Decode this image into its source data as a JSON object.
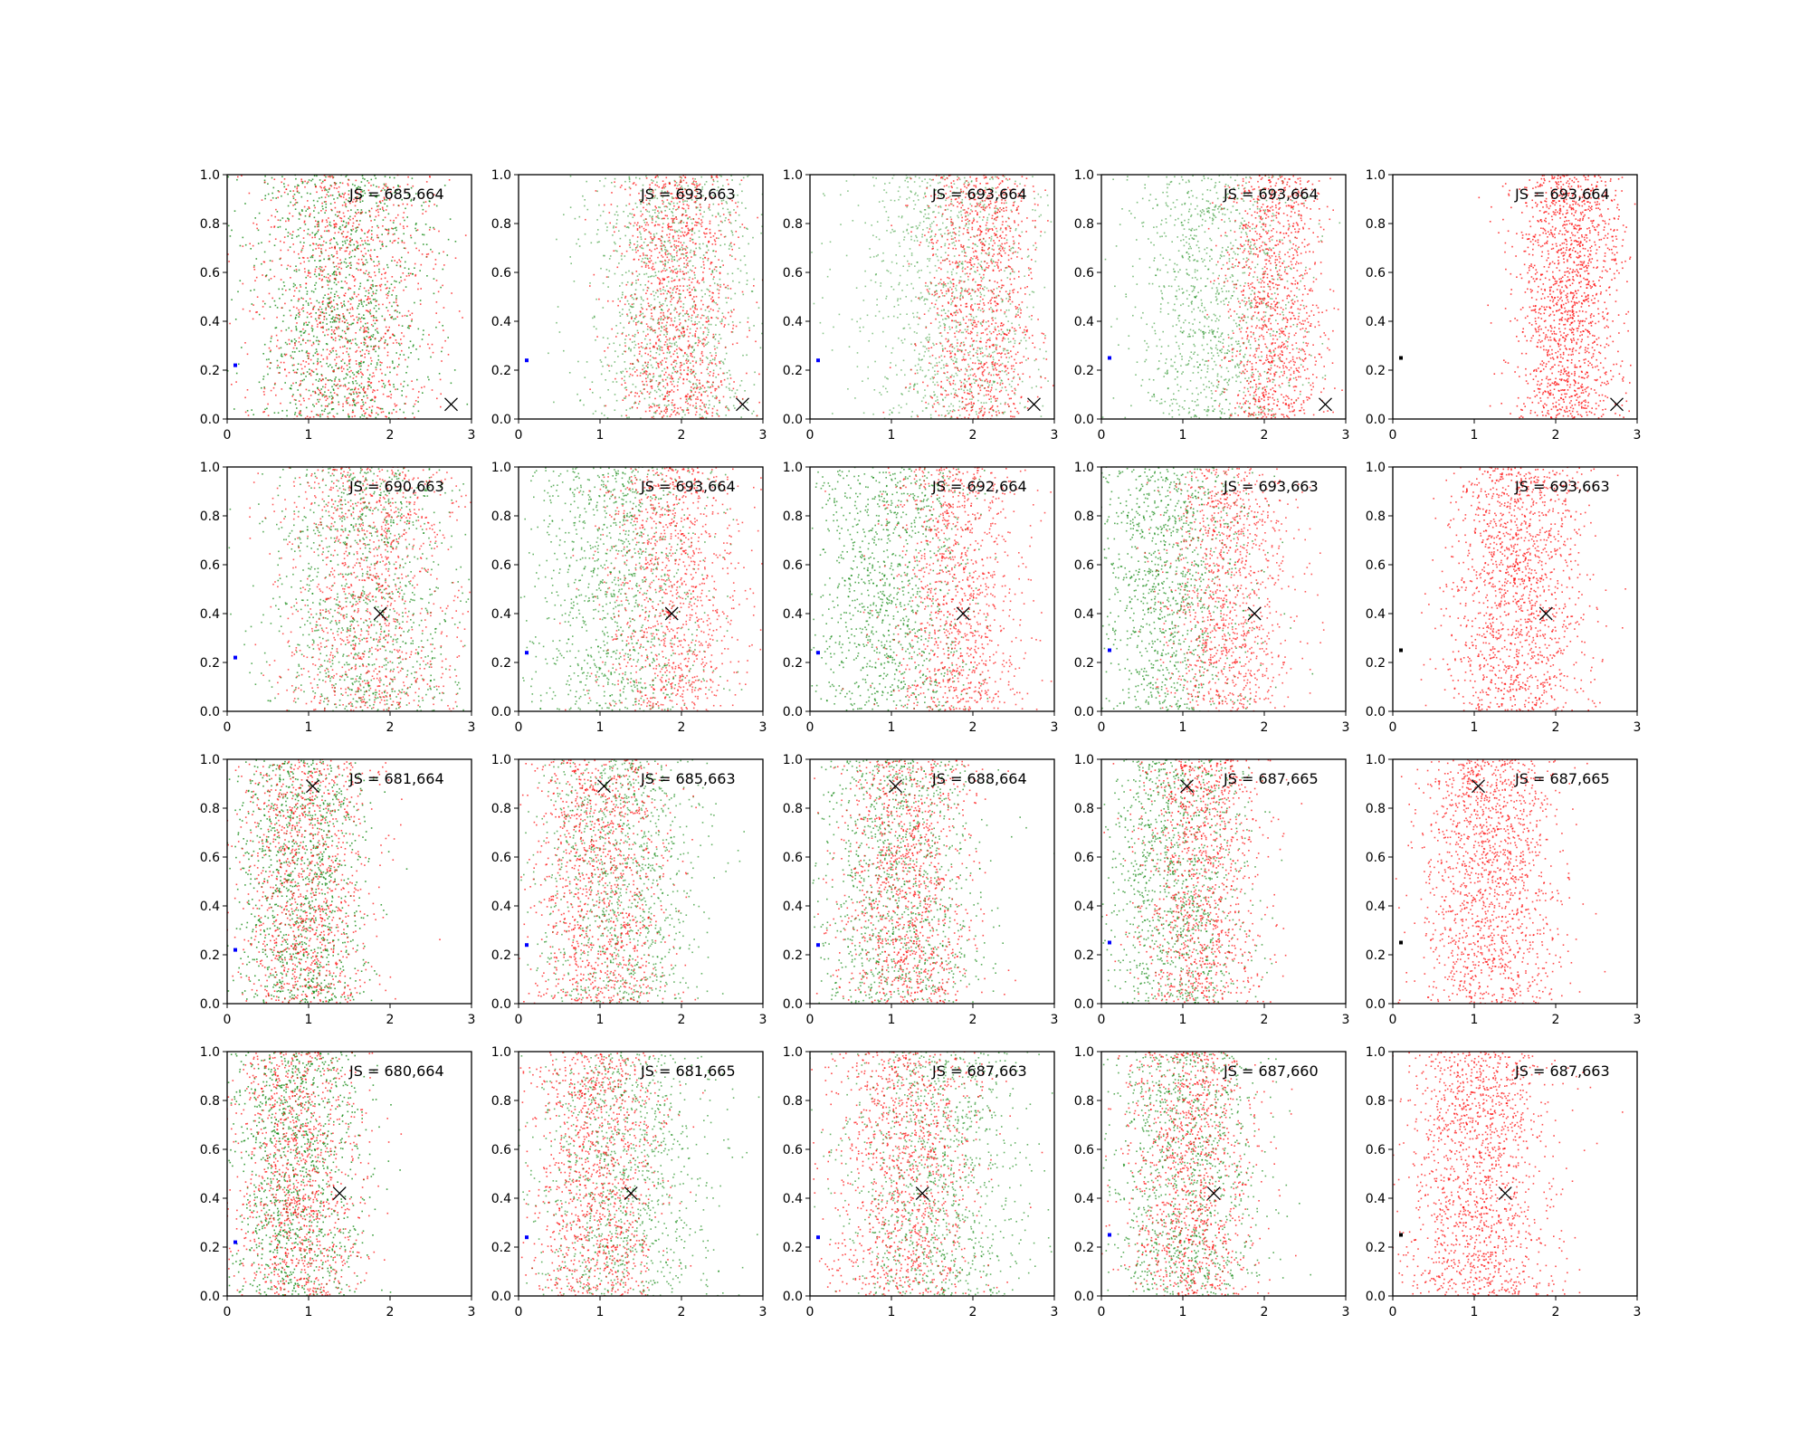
{
  "figure": {
    "rows": 4,
    "cols": 5
  },
  "colors": {
    "red": "#ff0000",
    "green": "#008000",
    "blue": "#0000ff",
    "black": "#000000",
    "axis": "#000000"
  },
  "axes": {
    "xlim": [
      0,
      3
    ],
    "ylim": [
      0,
      1
    ],
    "xticks": [
      0,
      1,
      2,
      3
    ],
    "xtick_labels": [
      "0",
      "1",
      "2",
      "3"
    ],
    "yticks": [
      0.0,
      0.2,
      0.4,
      0.6,
      0.8,
      1.0
    ],
    "ytick_labels": [
      "0.0",
      "0.2",
      "0.4",
      "0.6",
      "0.8",
      "1.0"
    ],
    "grid": false
  },
  "chart_data": {
    "type": "scatter",
    "row_markers": [
      {
        "x": 2.75,
        "y": 0.06
      },
      {
        "x": 1.88,
        "y": 0.4
      },
      {
        "x": 1.05,
        "y": 0.89
      },
      {
        "x": 1.38,
        "y": 0.42
      }
    ],
    "panels": [
      {
        "annotation": "JS = 685,664",
        "small_marker": {
          "x": 0.1,
          "y": 0.22,
          "color": "blue"
        },
        "clouds": [
          {
            "color": "green",
            "center": 1.4,
            "spread": 0.55,
            "count": 1100,
            "opacity": 0.75
          },
          {
            "color": "red",
            "center": 1.45,
            "spread": 0.55,
            "count": 1100,
            "opacity": 0.7
          }
        ]
      },
      {
        "annotation": "JS = 693,663",
        "small_marker": {
          "x": 0.1,
          "y": 0.24,
          "color": "blue"
        },
        "clouds": [
          {
            "color": "green",
            "center": 1.9,
            "spread": 0.55,
            "count": 1100,
            "opacity": 0.5
          },
          {
            "color": "red",
            "center": 1.95,
            "spread": 0.38,
            "count": 1100,
            "opacity": 0.7
          }
        ]
      },
      {
        "annotation": "JS = 693,664",
        "small_marker": {
          "x": 0.1,
          "y": 0.24,
          "color": "blue"
        },
        "clouds": [
          {
            "color": "green",
            "center": 1.75,
            "spread": 0.6,
            "count": 1100,
            "opacity": 0.45
          },
          {
            "color": "red",
            "center": 2.1,
            "spread": 0.35,
            "count": 1100,
            "opacity": 0.7
          }
        ]
      },
      {
        "annotation": "JS = 693,664",
        "small_marker": {
          "x": 0.1,
          "y": 0.25,
          "color": "blue"
        },
        "clouds": [
          {
            "color": "green",
            "center": 1.4,
            "spread": 0.55,
            "count": 1100,
            "opacity": 0.5
          },
          {
            "color": "red",
            "center": 2.15,
            "spread": 0.3,
            "count": 1100,
            "opacity": 0.7
          }
        ]
      },
      {
        "annotation": "JS = 693,664",
        "small_marker": {
          "x": 0.1,
          "y": 0.25,
          "color": "black"
        },
        "clouds": [
          {
            "color": "red",
            "center": 2.15,
            "spread": 0.32,
            "count": 1500,
            "opacity": 0.75
          }
        ]
      },
      {
        "annotation": "JS = 690,663",
        "small_marker": {
          "x": 0.1,
          "y": 0.22,
          "color": "blue"
        },
        "clouds": [
          {
            "color": "green",
            "center": 1.7,
            "spread": 0.55,
            "count": 1100,
            "opacity": 0.65
          },
          {
            "color": "red",
            "center": 1.75,
            "spread": 0.55,
            "count": 1100,
            "opacity": 0.65
          }
        ]
      },
      {
        "annotation": "JS = 693,664",
        "small_marker": {
          "x": 0.1,
          "y": 0.24,
          "color": "blue"
        },
        "clouds": [
          {
            "color": "green",
            "center": 1.2,
            "spread": 0.55,
            "count": 1100,
            "opacity": 0.6
          },
          {
            "color": "red",
            "center": 1.9,
            "spread": 0.42,
            "count": 1100,
            "opacity": 0.65
          }
        ]
      },
      {
        "annotation": "JS = 692,664",
        "small_marker": {
          "x": 0.1,
          "y": 0.24,
          "color": "blue"
        },
        "clouds": [
          {
            "color": "green",
            "center": 0.95,
            "spread": 0.5,
            "count": 1100,
            "opacity": 0.65
          },
          {
            "color": "red",
            "center": 1.8,
            "spread": 0.4,
            "count": 1100,
            "opacity": 0.65
          }
        ]
      },
      {
        "annotation": "JS = 693,663",
        "small_marker": {
          "x": 0.1,
          "y": 0.25,
          "color": "blue"
        },
        "clouds": [
          {
            "color": "green",
            "center": 0.85,
            "spread": 0.45,
            "count": 1100,
            "opacity": 0.65
          },
          {
            "color": "red",
            "center": 1.55,
            "spread": 0.38,
            "count": 1100,
            "opacity": 0.65
          }
        ]
      },
      {
        "annotation": "JS = 693,663",
        "small_marker": {
          "x": 0.1,
          "y": 0.25,
          "color": "black"
        },
        "clouds": [
          {
            "color": "red",
            "center": 1.55,
            "spread": 0.42,
            "count": 1500,
            "opacity": 0.7
          }
        ]
      },
      {
        "annotation": "JS = 681,664",
        "small_marker": {
          "x": 0.1,
          "y": 0.22,
          "color": "blue"
        },
        "clouds": [
          {
            "color": "green",
            "center": 0.9,
            "spread": 0.4,
            "count": 1100,
            "opacity": 0.75
          },
          {
            "color": "red",
            "center": 0.95,
            "spread": 0.42,
            "count": 1100,
            "opacity": 0.7
          }
        ]
      },
      {
        "annotation": "JS = 685,663",
        "small_marker": {
          "x": 0.1,
          "y": 0.24,
          "color": "blue"
        },
        "clouds": [
          {
            "color": "green",
            "center": 1.25,
            "spread": 0.5,
            "count": 1100,
            "opacity": 0.6
          },
          {
            "color": "red",
            "center": 1.0,
            "spread": 0.42,
            "count": 1100,
            "opacity": 0.7
          }
        ]
      },
      {
        "annotation": "JS = 688,664",
        "small_marker": {
          "x": 0.1,
          "y": 0.24,
          "color": "blue"
        },
        "clouds": [
          {
            "color": "green",
            "center": 1.1,
            "spread": 0.5,
            "count": 1100,
            "opacity": 0.65
          },
          {
            "color": "red",
            "center": 1.2,
            "spread": 0.42,
            "count": 1100,
            "opacity": 0.7
          }
        ]
      },
      {
        "annotation": "JS = 687,665",
        "small_marker": {
          "x": 0.1,
          "y": 0.25,
          "color": "blue"
        },
        "clouds": [
          {
            "color": "green",
            "center": 0.9,
            "spread": 0.45,
            "count": 1100,
            "opacity": 0.65
          },
          {
            "color": "red",
            "center": 1.25,
            "spread": 0.38,
            "count": 1100,
            "opacity": 0.7
          }
        ]
      },
      {
        "annotation": "JS = 687,665",
        "small_marker": {
          "x": 0.1,
          "y": 0.25,
          "color": "black"
        },
        "clouds": [
          {
            "color": "red",
            "center": 1.2,
            "spread": 0.42,
            "count": 1500,
            "opacity": 0.7
          }
        ]
      },
      {
        "annotation": "JS = 680,664",
        "small_marker": {
          "x": 0.1,
          "y": 0.22,
          "color": "blue"
        },
        "clouds": [
          {
            "color": "green",
            "center": 0.85,
            "spread": 0.42,
            "count": 1100,
            "opacity": 0.75
          },
          {
            "color": "red",
            "center": 0.85,
            "spread": 0.4,
            "count": 1100,
            "opacity": 0.7
          }
        ]
      },
      {
        "annotation": "JS = 681,665",
        "small_marker": {
          "x": 0.1,
          "y": 0.24,
          "color": "blue"
        },
        "clouds": [
          {
            "color": "green",
            "center": 1.25,
            "spread": 0.55,
            "count": 1100,
            "opacity": 0.6
          },
          {
            "color": "red",
            "center": 0.95,
            "spread": 0.4,
            "count": 1100,
            "opacity": 0.7
          }
        ]
      },
      {
        "annotation": "JS = 687,663",
        "small_marker": {
          "x": 0.1,
          "y": 0.24,
          "color": "blue"
        },
        "clouds": [
          {
            "color": "green",
            "center": 1.55,
            "spread": 0.55,
            "count": 1100,
            "opacity": 0.6
          },
          {
            "color": "red",
            "center": 1.2,
            "spread": 0.45,
            "count": 1100,
            "opacity": 0.7
          }
        ]
      },
      {
        "annotation": "JS = 687,660",
        "small_marker": {
          "x": 0.1,
          "y": 0.25,
          "color": "blue"
        },
        "clouds": [
          {
            "color": "green",
            "center": 1.05,
            "spread": 0.45,
            "count": 1100,
            "opacity": 0.65
          },
          {
            "color": "red",
            "center": 1.1,
            "spread": 0.4,
            "count": 1100,
            "opacity": 0.7
          }
        ]
      },
      {
        "annotation": "JS = 687,663",
        "small_marker": {
          "x": 0.1,
          "y": 0.25,
          "color": "black"
        },
        "clouds": [
          {
            "color": "red",
            "center": 1.05,
            "spread": 0.45,
            "count": 1500,
            "opacity": 0.7
          }
        ]
      }
    ]
  }
}
